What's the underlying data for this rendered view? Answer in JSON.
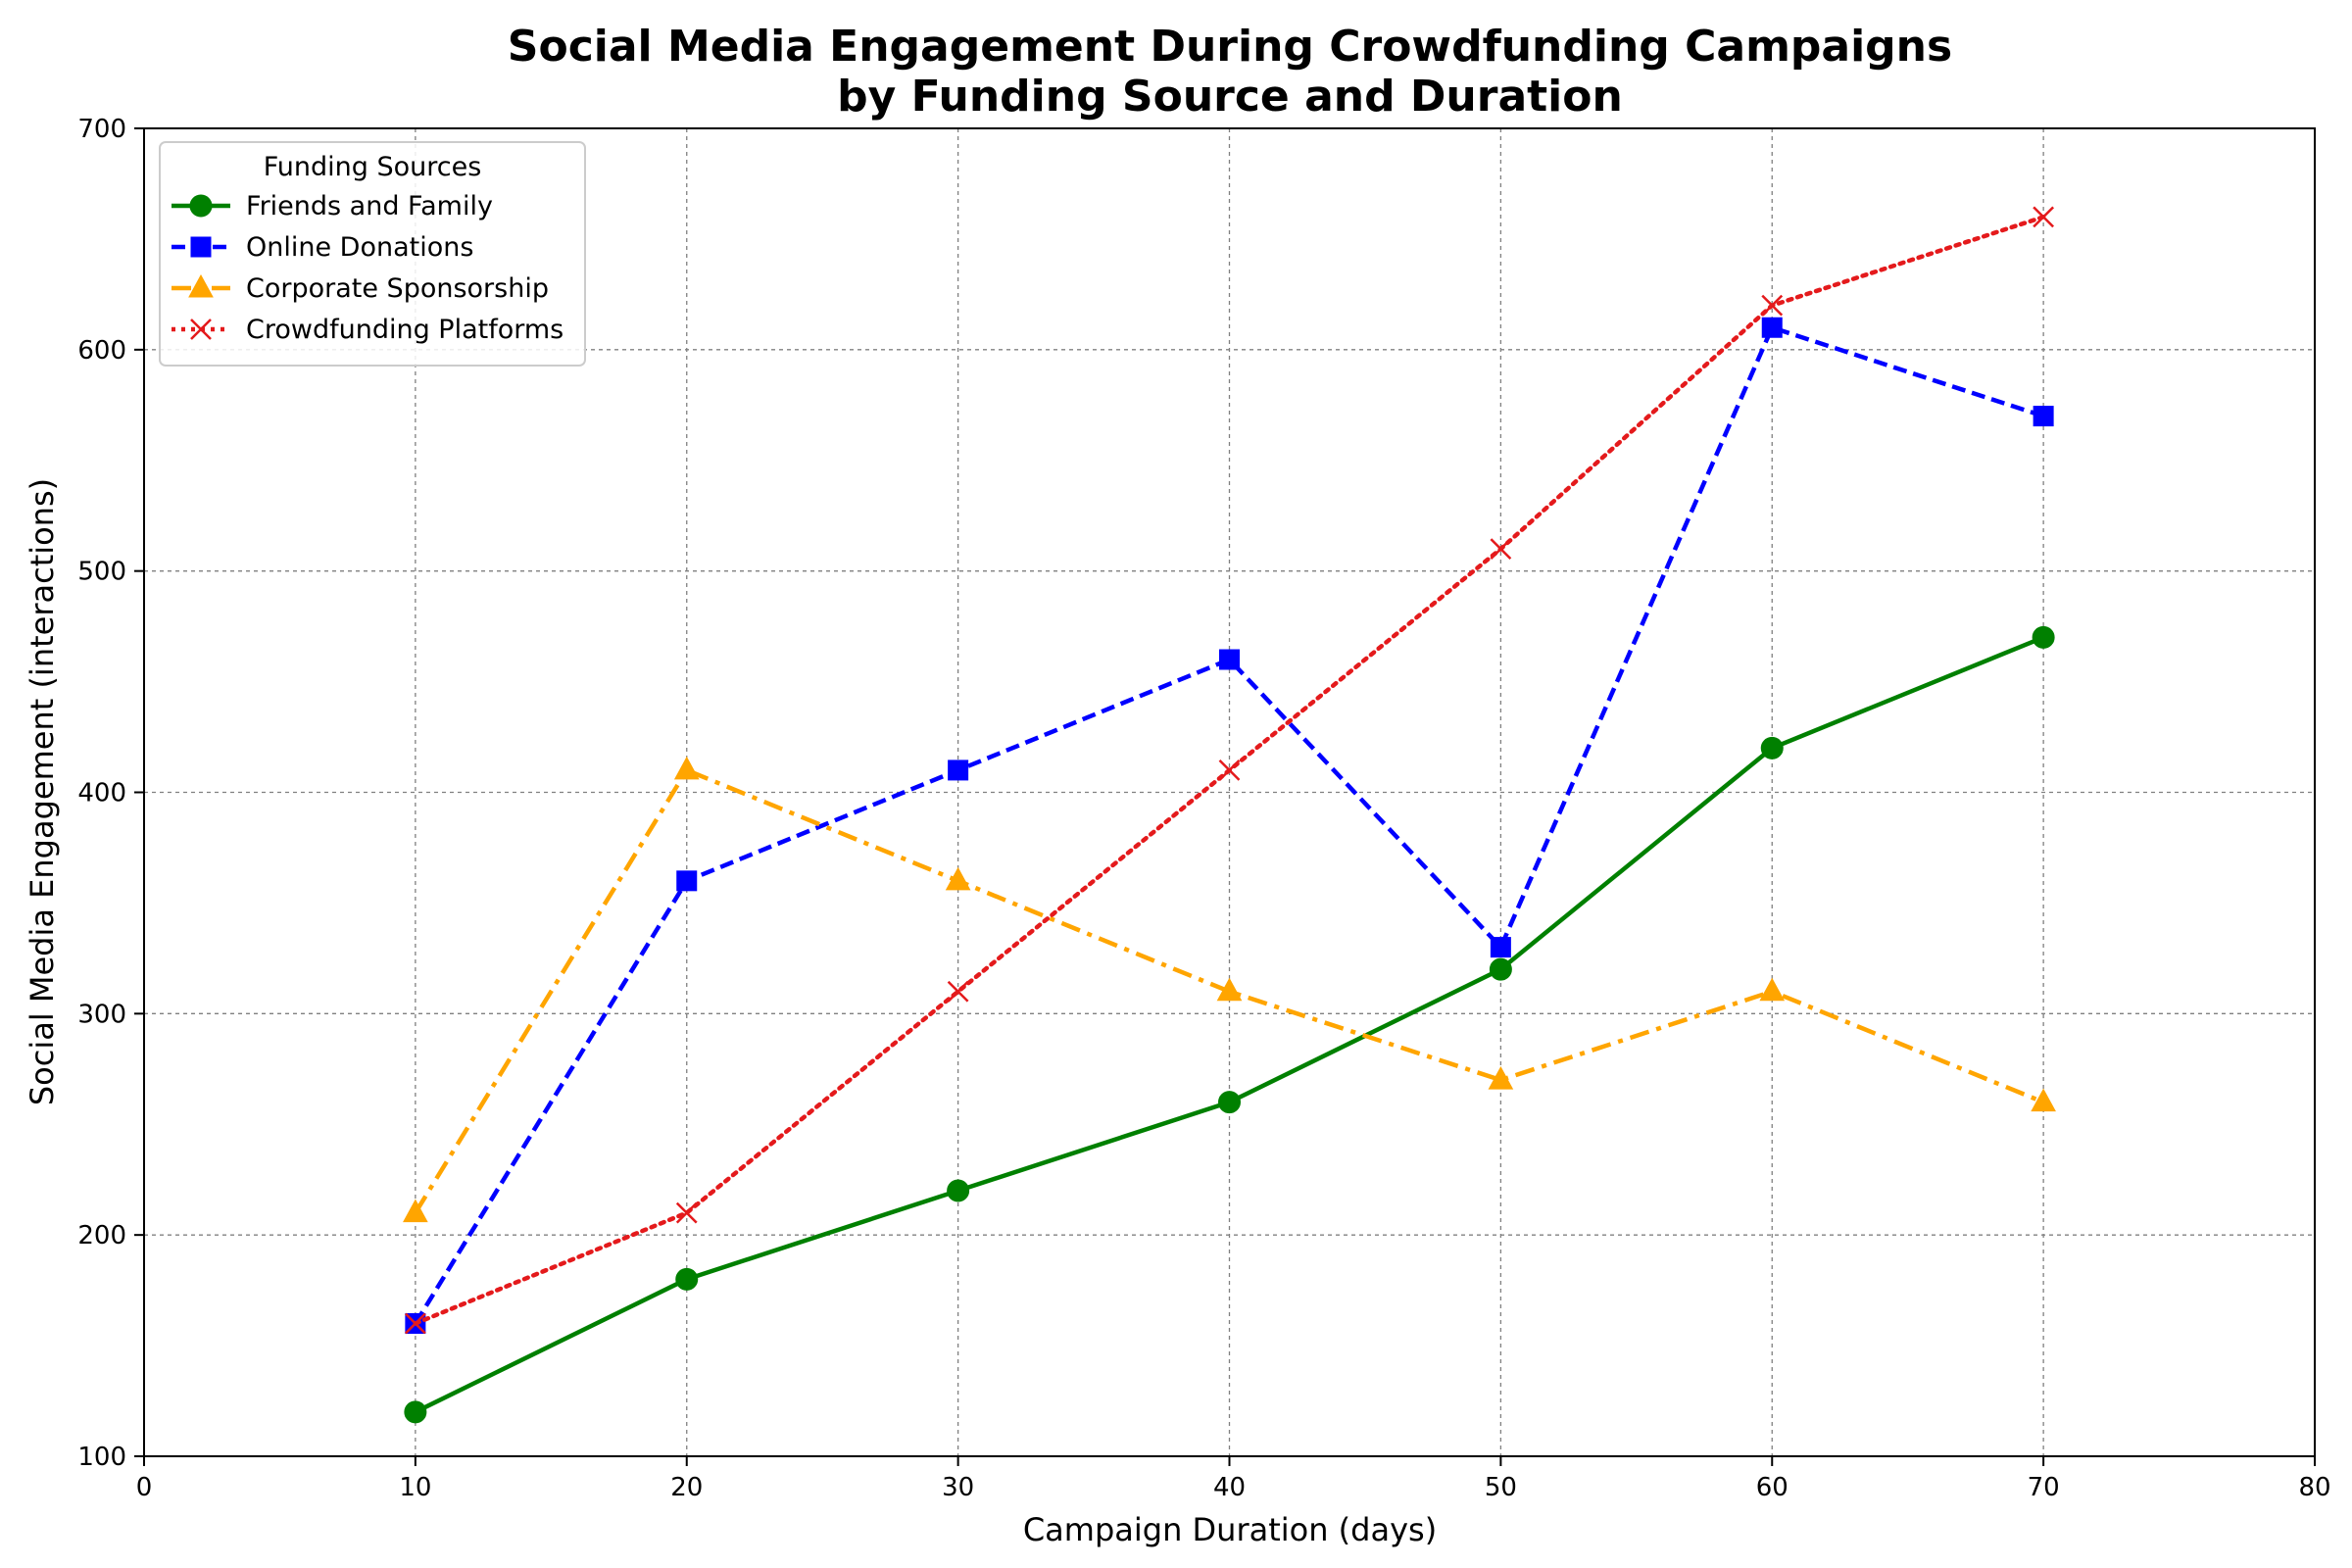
{
  "chart_data": {
    "type": "line",
    "title_lines": [
      "Social Media Engagement During Crowdfunding Campaigns",
      "by Funding Source and Duration"
    ],
    "xlabel": "Campaign Duration (days)",
    "ylabel": "Social Media Engagement (interactions)",
    "xlim": [
      0,
      80
    ],
    "ylim": [
      100,
      700
    ],
    "xticks": [
      0,
      10,
      20,
      30,
      40,
      50,
      60,
      70,
      80
    ],
    "yticks": [
      100,
      200,
      300,
      400,
      500,
      600,
      700
    ],
    "grid": true,
    "legend": {
      "title": "Funding Sources",
      "placement": "top-left"
    },
    "x": [
      10,
      20,
      30,
      40,
      50,
      60,
      70
    ],
    "series": [
      {
        "name": "Friends and Family",
        "values": [
          120,
          180,
          220,
          260,
          320,
          420,
          470
        ],
        "color": "#008000",
        "style": "solid",
        "marker": "circle"
      },
      {
        "name": "Online Donations",
        "values": [
          160,
          360,
          410,
          460,
          330,
          610,
          570
        ],
        "color": "#0000ff",
        "style": "dashed",
        "marker": "square"
      },
      {
        "name": "Corporate Sponsorship",
        "values": [
          210,
          410,
          360,
          310,
          270,
          310,
          260
        ],
        "color": "#ffa500",
        "style": "dashdot",
        "marker": "triangle"
      },
      {
        "name": "Crowdfunding Platforms",
        "values": [
          160,
          210,
          310,
          410,
          510,
          620,
          660
        ],
        "color": "#e41a1c",
        "style": "dotted",
        "marker": "x"
      }
    ]
  }
}
